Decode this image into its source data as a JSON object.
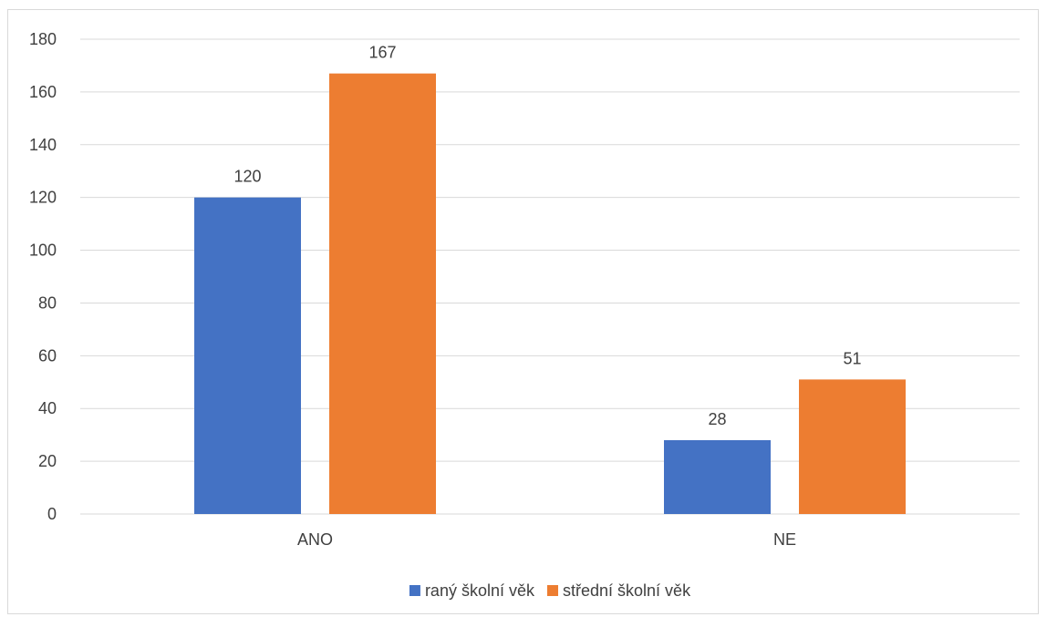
{
  "chart_data": {
    "type": "bar",
    "title": "",
    "xlabel": "",
    "ylabel": "",
    "categories": [
      "ANO",
      "NE"
    ],
    "series": [
      {
        "name": "raný školní věk",
        "values": [
          120,
          28
        ],
        "color": "#4472c4"
      },
      {
        "name": "střední školní věk",
        "values": [
          167,
          51
        ],
        "color": "#ed7d31"
      }
    ],
    "ylim": [
      0,
      180
    ],
    "yticks": [
      0,
      20,
      40,
      60,
      80,
      100,
      120,
      140,
      160,
      180
    ],
    "grid": true,
    "data_labels": true,
    "legend_position": "bottom",
    "gridline_color": "#d9d9d9",
    "text_color": "#404040"
  }
}
